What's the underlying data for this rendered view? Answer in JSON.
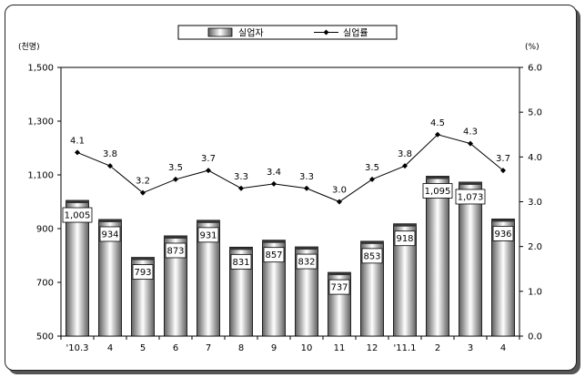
{
  "chart_data": {
    "type": "bar",
    "categories": [
      "'10.3",
      "4",
      "5",
      "6",
      "7",
      "8",
      "9",
      "10",
      "11",
      "12",
      "'11.1",
      "2",
      "3",
      "4"
    ],
    "series": [
      {
        "name": "실업자",
        "type": "bar",
        "axis": "left",
        "values": [
          1005,
          934,
          793,
          873,
          931,
          831,
          857,
          832,
          737,
          853,
          918,
          1095,
          1073,
          936
        ],
        "labels": [
          "1,005",
          "934",
          "793",
          "873",
          "931",
          "831",
          "857",
          "832",
          "737",
          "853",
          "918",
          "1,095",
          "1,073",
          "936"
        ]
      },
      {
        "name": "실업률",
        "type": "line",
        "axis": "right",
        "values": [
          4.1,
          3.8,
          3.2,
          3.5,
          3.7,
          3.3,
          3.4,
          3.3,
          3.0,
          3.5,
          3.8,
          4.5,
          4.3,
          3.7
        ],
        "labels": [
          "4.1",
          "3.8",
          "3.2",
          "3.5",
          "3.7",
          "3.3",
          "3.4",
          "3.3",
          "3.0",
          "3.5",
          "3.8",
          "4.5",
          "4.3",
          "3.7"
        ]
      }
    ],
    "ylabel_left": "(천명)",
    "ylabel_right": "(%)",
    "ylim_left": [
      500,
      1500
    ],
    "ylim_right": [
      0.0,
      6.0
    ],
    "yticks_left": [
      "500",
      "700",
      "900",
      "1,100",
      "1,300",
      "1,500"
    ],
    "yticks_left_values": [
      500,
      700,
      900,
      1100,
      1300,
      1500
    ],
    "yticks_right": [
      "0.0",
      "1.0",
      "2.0",
      "3.0",
      "4.0",
      "5.0",
      "6.0"
    ],
    "yticks_right_values": [
      0,
      1,
      2,
      3,
      4,
      5,
      6
    ],
    "legend_position": "top-center",
    "grid": false,
    "colors": {
      "bar_dark": "#6e6e6e",
      "bar_light": "#ffffff",
      "line": "#000000"
    }
  }
}
